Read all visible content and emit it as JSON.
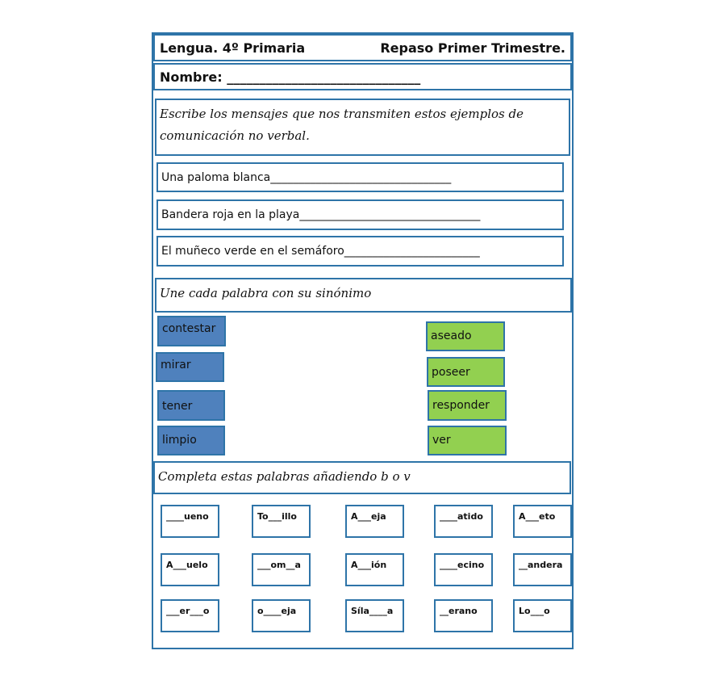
{
  "header": {
    "left": "Lengua. 4º Primaria",
    "right": "Repaso Primer Trimestre."
  },
  "name_label": "Nombre: ______________________________",
  "section1": {
    "instruction": "Escribe los mensajes que nos transmiten estos ejemplos de comunicación no verbal.",
    "lines": [
      "Una paloma blanca________________________________",
      "Bandera roja en la playa________________________________",
      "El muñeco verde en el semáforo________________________"
    ]
  },
  "section2": {
    "instruction": "Une cada palabra con su sinónimo",
    "left_words": [
      "contestar",
      "mirar",
      "tener",
      "limpio"
    ],
    "right_words": [
      "aseado",
      "poseer",
      "responder",
      "ver"
    ],
    "colors": {
      "left": "#4f81bd",
      "right": "#92d050"
    }
  },
  "section3": {
    "instruction": "Completa estas palabras añadiendo b o v",
    "words": [
      [
        "____ueno",
        "To___illo",
        "A___eja",
        "____atido",
        "A___eto"
      ],
      [
        "A___uelo",
        "___om__a",
        "A___ión",
        "____ecino",
        "__andera"
      ],
      [
        "___er___o",
        "o____eja",
        "Síla____a",
        "__erano",
        "Lo___o"
      ]
    ]
  }
}
